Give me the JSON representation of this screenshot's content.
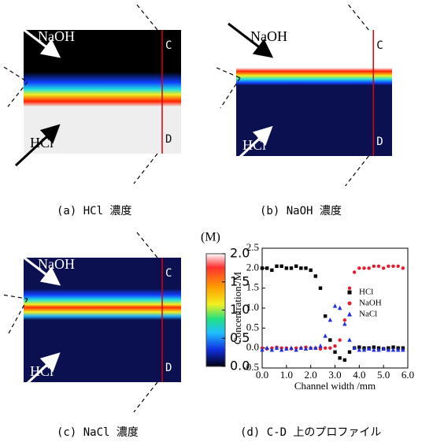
{
  "panels": [
    {
      "caption": "(a) HCl 濃度",
      "labels": [
        "NaOH",
        "HCl",
        "C",
        "D"
      ]
    },
    {
      "caption": "(b) NaOH 濃度",
      "labels": [
        "NaOH",
        "HCl",
        "C",
        "D"
      ]
    },
    {
      "caption": "(c) NaCl 濃度",
      "labels": [
        "NaOH",
        "HCl",
        "C",
        "D"
      ]
    }
  ],
  "colorbar": {
    "unit": "(M)",
    "lim": [
      0,
      2
    ],
    "ticks": [
      {
        "value": 0,
        "label": "0.0"
      },
      {
        "value": 0.5,
        "label": "0.5"
      },
      {
        "value": 1,
        "label": "1.0"
      },
      {
        "value": 1.5,
        "label": "1.5"
      },
      {
        "value": 2,
        "label": "2.0"
      }
    ]
  },
  "chart_data": {
    "type": "scatter",
    "caption": "(d) C-D 上のプロファイル",
    "x_label": "Channel width /mm",
    "y_label": "Concentration /M",
    "x": [
      0.0,
      0.2,
      0.4,
      0.6,
      0.8,
      1.0,
      1.2,
      1.4,
      1.6,
      1.8,
      2.0,
      2.2,
      2.4,
      2.6,
      2.8,
      3.0,
      3.2,
      3.4,
      3.6,
      3.8,
      4.0,
      4.2,
      4.4,
      4.6,
      4.8,
      5.0,
      5.2,
      5.4,
      5.6,
      5.8
    ],
    "series": [
      {
        "name": "HCl",
        "color": "#000000",
        "marker": "square",
        "values": [
          2.0,
          2.0,
          1.95,
          2.05,
          2.05,
          2.0,
          2.0,
          2.05,
          2.0,
          2.0,
          1.95,
          1.8,
          1.5,
          0.8,
          0.2,
          -0.1,
          -0.25,
          -0.3,
          -0.1,
          0.0,
          0.02,
          0.0,
          0.0,
          0.02,
          0.0,
          -0.02,
          0.0,
          0.02,
          0.0,
          0.0
        ]
      },
      {
        "name": "NaOH",
        "color": "#e8192c",
        "marker": "circle",
        "values": [
          0.0,
          -0.02,
          0.0,
          0.02,
          0.0,
          0.0,
          -0.02,
          0.0,
          0.0,
          0.02,
          0.0,
          0.0,
          -0.02,
          0.0,
          0.0,
          0.05,
          0.2,
          0.7,
          1.5,
          1.9,
          2.0,
          2.0,
          2.0,
          2.05,
          2.05,
          2.0,
          2.05,
          2.05,
          2.05,
          2.0
        ]
      },
      {
        "name": "NaCl",
        "color": "#1f2fe0",
        "marker": "triangle",
        "values": [
          -0.05,
          0.0,
          -0.05,
          0.0,
          -0.05,
          -0.02,
          0.0,
          -0.05,
          0.0,
          -0.02,
          0.0,
          0.0,
          0.05,
          0.3,
          0.7,
          1.05,
          1.0,
          0.6,
          0.2,
          0.0,
          -0.05,
          -0.05,
          -0.02,
          -0.05,
          -0.05,
          -0.02,
          -0.05,
          -0.05,
          -0.05,
          -0.05
        ]
      }
    ],
    "xlim": [
      0,
      6
    ],
    "xticks": [
      {
        "value": 0,
        "label": "0.0"
      },
      {
        "value": 1,
        "label": "1.0"
      },
      {
        "value": 2,
        "label": "2.0"
      },
      {
        "value": 3,
        "label": "3.0"
      },
      {
        "value": 4,
        "label": "4.0"
      },
      {
        "value": 5,
        "label": "5.0"
      },
      {
        "value": 6,
        "label": "6.0"
      }
    ],
    "ylim": [
      -0.5,
      2.5
    ],
    "yticks": [
      {
        "value": -0.5,
        "label": "-0.5"
      },
      {
        "value": 0,
        "label": "0.0"
      },
      {
        "value": 0.5,
        "label": "0.5"
      },
      {
        "value": 1,
        "label": "1.0"
      },
      {
        "value": 1.5,
        "label": "1.5"
      },
      {
        "value": 2,
        "label": "2.0"
      },
      {
        "value": 2.5,
        "label": "2.5"
      }
    ],
    "legend": "center-right"
  }
}
